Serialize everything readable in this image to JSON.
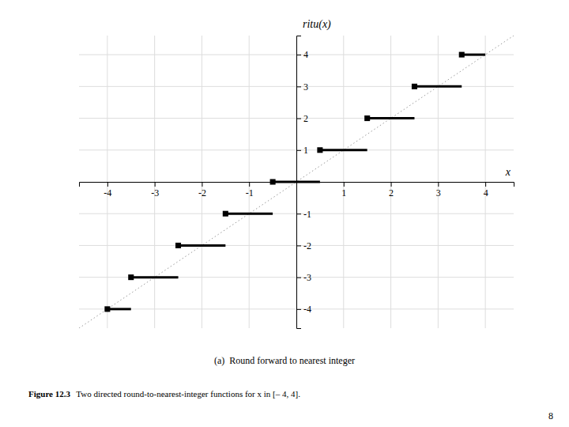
{
  "chart_data": {
    "type": "step",
    "title": "ritu(x)",
    "xlabel": "x",
    "xlim": [
      -4.6,
      4.6
    ],
    "ylim": [
      -4.6,
      4.6
    ],
    "xticks": [
      -4,
      -3,
      -2,
      -1,
      1,
      2,
      3,
      4
    ],
    "yticks": [
      -4,
      -3,
      -2,
      -1,
      1,
      2,
      3,
      4
    ],
    "x": [
      -4.0,
      -3.5,
      -2.5,
      -1.5,
      -0.5,
      0.5,
      1.5,
      2.5,
      3.5
    ],
    "x_end": [
      -3.5,
      -2.5,
      -1.5,
      -0.5,
      0.5,
      1.5,
      2.5,
      3.5,
      4.0
    ],
    "values": [
      -4,
      -3,
      -2,
      -1,
      0,
      1,
      2,
      3,
      4
    ],
    "color": "#000000",
    "marker": "square",
    "grid": true,
    "annotations": [
      "(a)  Round forward to nearest integer",
      "Figure 12.3",
      "  Two directed round-to-nearest-integer functions for x in [– 4, 4].",
      "8"
    ]
  }
}
